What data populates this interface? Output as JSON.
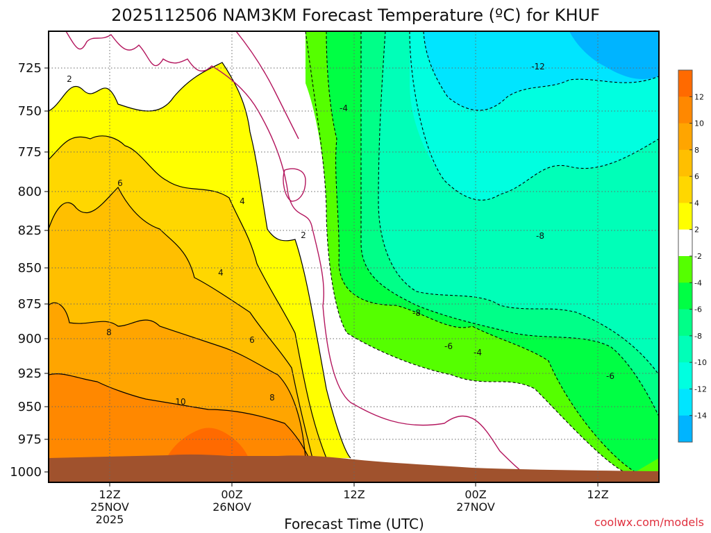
{
  "chart_data": {
    "type": "contour",
    "title": "2025112506 NAM3KM Forecast Temperature (ºC) for KHUF",
    "xlabel": "Forecast Time (UTC)",
    "ylabel": "",
    "y_ticks": [
      "725",
      "750",
      "775",
      "800",
      "825",
      "850",
      "875",
      "900",
      "925",
      "950",
      "975",
      "1000"
    ],
    "x_ticks": [
      {
        "lines": [
          "12Z",
          "25NOV",
          "2025"
        ]
      },
      {
        "lines": [
          "00Z",
          "26NOV"
        ]
      },
      {
        "lines": [
          "12Z"
        ]
      },
      {
        "lines": [
          "00Z",
          "27NOV"
        ]
      },
      {
        "lines": [
          "12Z"
        ]
      }
    ],
    "colorbar": {
      "labels": [
        "12",
        "10",
        "8",
        "6",
        "4",
        "2",
        "-2",
        "-4",
        "-6",
        "-8",
        "-10",
        "-12",
        "-14"
      ],
      "colors": [
        "#ff6a00",
        "#ff8800",
        "#ffa500",
        "#ffbf00",
        "#ffd700",
        "#ffff00",
        "#ffffff",
        "#55ff00",
        "#00ff44",
        "#00ff88",
        "#00ffb8",
        "#00ffe0",
        "#00e5ff",
        "#00b4ff"
      ]
    },
    "contour_labels": [
      "2",
      "6",
      "4",
      "4",
      "2",
      "8",
      "6",
      "10",
      "8",
      "-4",
      "-12",
      "-8",
      "-8",
      "-6",
      "-4",
      "-6"
    ],
    "credit": "coolwx.com/models"
  }
}
